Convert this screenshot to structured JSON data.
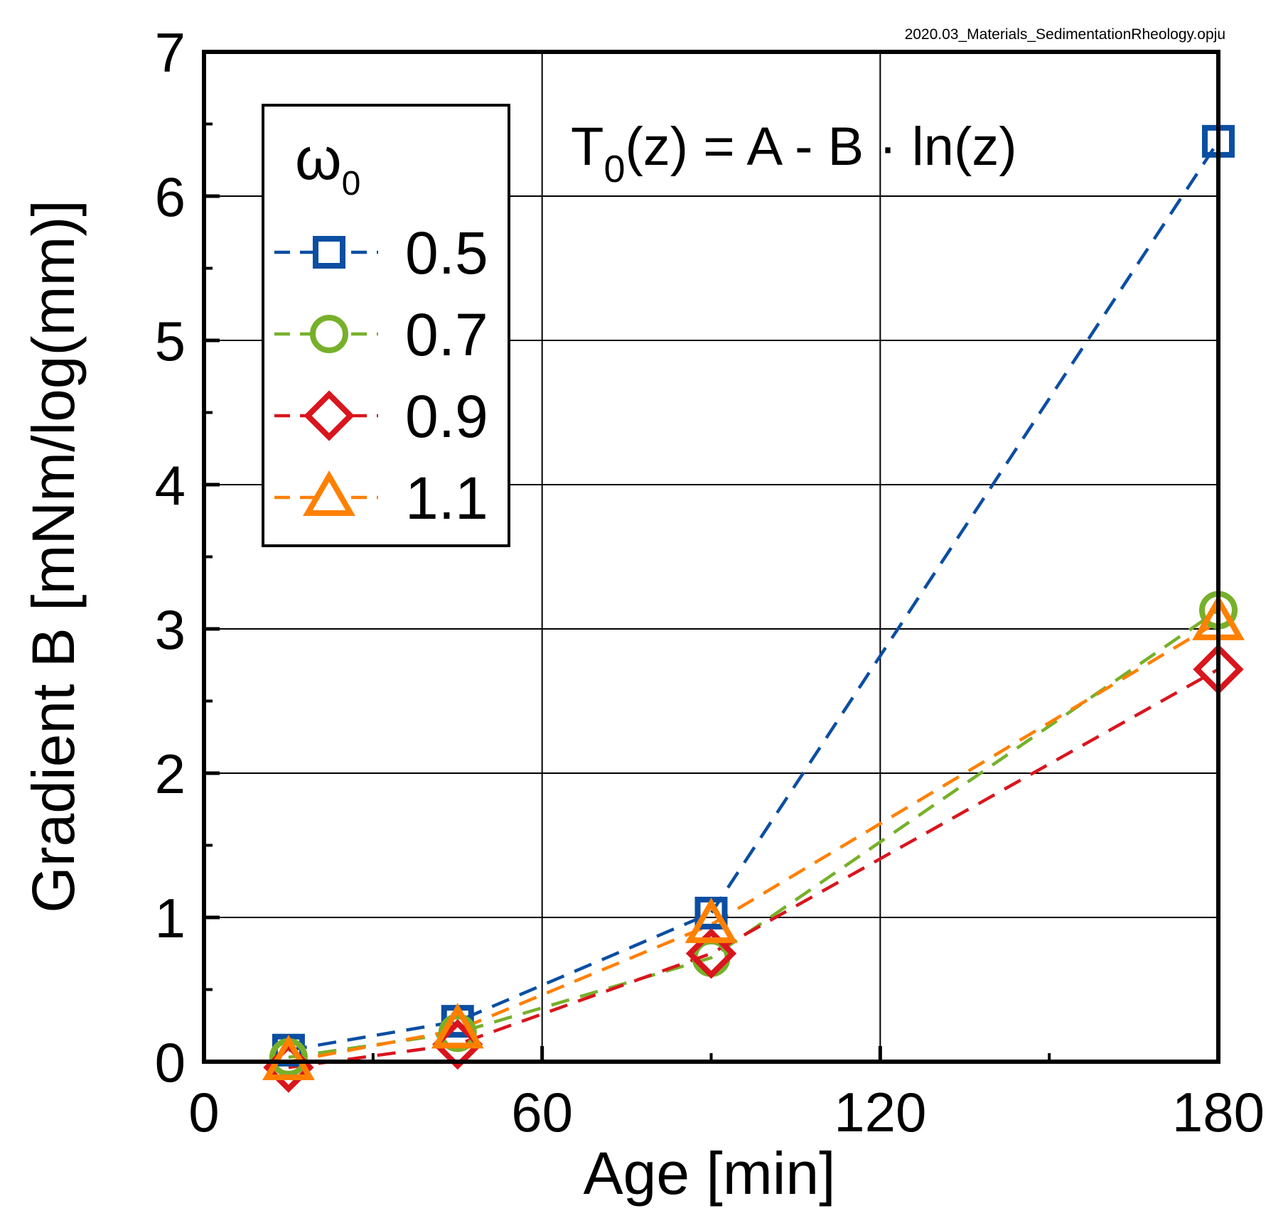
{
  "chart_data": {
    "type": "line",
    "file_label": "2020.03_Materials_SedimentationRheology.opju",
    "equation": {
      "lhs": "T",
      "sub": "0",
      "rhs": "(z) = A - B · ln(z)"
    },
    "xlabel": "Age [min]",
    "ylabel": "Gradient B [mNm/log(mm)]",
    "xlim": [
      0,
      180
    ],
    "ylim": [
      0,
      7
    ],
    "xticks": [
      0,
      60,
      120,
      180
    ],
    "yticks": [
      0,
      1,
      2,
      3,
      4,
      5,
      6,
      7
    ],
    "grid": true,
    "legend": {
      "title": "ω",
      "title_sub": "0",
      "placement": "top-left"
    },
    "series": [
      {
        "name": "0.5",
        "marker": "square",
        "color": "#0b4ea2",
        "x": [
          15,
          45,
          90,
          180
        ],
        "y": [
          0.08,
          0.28,
          1.03,
          6.38
        ]
      },
      {
        "name": "0.7",
        "marker": "circle",
        "color": "#77b02a",
        "x": [
          15,
          45,
          90,
          180
        ],
        "y": [
          0.03,
          0.2,
          0.72,
          3.13
        ]
      },
      {
        "name": "0.9",
        "marker": "diamond",
        "color": "#d9151d",
        "x": [
          15,
          45,
          90,
          180
        ],
        "y": [
          -0.04,
          0.12,
          0.75,
          2.72
        ]
      },
      {
        "name": "1.1",
        "marker": "triangle",
        "color": "#ff8000",
        "x": [
          15,
          45,
          90,
          180
        ],
        "y": [
          0.0,
          0.22,
          0.95,
          3.05
        ]
      }
    ]
  }
}
